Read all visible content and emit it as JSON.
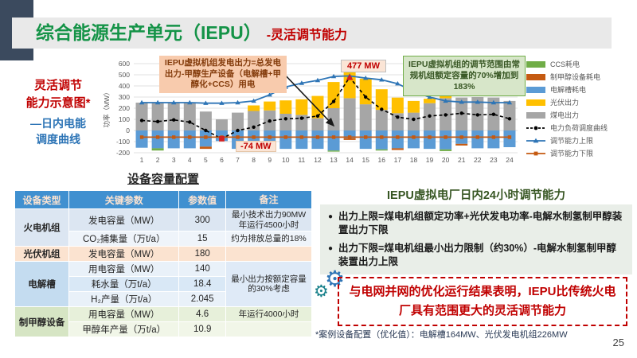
{
  "slide": {
    "title": "综合能源生产单元（IEPU）",
    "subtitle": "-灵活调节能力",
    "footnote": "*案例设备配置（优化值）：电解槽164MW、光伏发电机组226MW",
    "page_number": "25"
  },
  "left_caption": {
    "line1": "灵活调节",
    "line2": "能力示意图*",
    "line3": "—日内电能",
    "line4": "调度曲线"
  },
  "annotations": {
    "formula_note": "IEPU虚拟机组发电出力=总发电出力-甲醇生产设备（电解槽+甲醇化+CCS）用电",
    "peak_label": "477 MW",
    "min_label": "-74 MW",
    "range_note": "IEPU虚拟机组的调节范围由常规机组额定容量的70%增加到183%"
  },
  "chart_data": {
    "type": "bar+line combo, stacked bars",
    "ylabel": "功率（MW）",
    "ylim": [
      -200,
      600
    ],
    "yticks": [
      600,
      500,
      400,
      300,
      200,
      100,
      0,
      -100,
      -200
    ],
    "x": [
      1,
      2,
      3,
      4,
      5,
      6,
      7,
      8,
      9,
      10,
      11,
      12,
      13,
      14,
      15,
      16,
      17,
      18,
      19,
      20,
      21,
      22,
      23,
      24
    ],
    "series": [
      {
        "name": "煤电出力",
        "type": "bar",
        "stack": "pos",
        "color": "#a6a6a6",
        "values": [
          250,
          250,
          250,
          250,
          170,
          100,
          160,
          175,
          180,
          150,
          140,
          110,
          200,
          290,
          235,
          185,
          155,
          160,
          245,
          290,
          295,
          300,
          295,
          265
        ]
      },
      {
        "name": "光伏出力",
        "type": "bar",
        "stack": "pos",
        "color": "#ffc000",
        "values": [
          0,
          0,
          0,
          0,
          0,
          0,
          0,
          50,
          80,
          120,
          140,
          200,
          235,
          235,
          230,
          185,
          140,
          105,
          40,
          25,
          0,
          0,
          0,
          0
        ]
      },
      {
        "name": "电解槽耗电",
        "type": "bar",
        "stack": "neg",
        "color": "#5b9bd5",
        "values": [
          -155,
          -160,
          -160,
          -160,
          -145,
          -95,
          -165,
          -170,
          -165,
          -165,
          -165,
          -165,
          -180,
          -70,
          -165,
          -170,
          -160,
          -160,
          -165,
          -170,
          -120,
          -160,
          -160,
          -150
        ]
      },
      {
        "name": "制甲醇设备耗电",
        "type": "bar",
        "stack": "neg",
        "color": "#c55a11",
        "values": [
          0,
          0,
          0,
          0,
          -20,
          0,
          0,
          0,
          0,
          0,
          0,
          0,
          0,
          -15,
          0,
          0,
          -15,
          0,
          0,
          0,
          -15,
          0,
          0,
          0
        ]
      },
      {
        "name": "CCS耗电",
        "type": "bar",
        "stack": "neg",
        "color": "#70ad47",
        "values": [
          0,
          -20,
          0,
          0,
          0,
          0,
          0,
          0,
          0,
          0,
          0,
          0,
          -10,
          0,
          0,
          -10,
          0,
          0,
          0,
          -15,
          0,
          0,
          0,
          0
        ]
      },
      {
        "name": "电力负荷调度曲线",
        "type": "line",
        "style": "dashed",
        "color": "#000000",
        "marker": "dot",
        "values": [
          90,
          80,
          95,
          75,
          0,
          -74,
          0,
          30,
          85,
          105,
          110,
          130,
          260,
          477,
          300,
          190,
          120,
          100,
          130,
          140,
          155,
          140,
          145,
          105
        ]
      },
      {
        "name": "调节能力上限",
        "type": "line",
        "style": "solid",
        "color": "#2e75b6",
        "marker": "triangle",
        "values": [
          250,
          250,
          250,
          250,
          245,
          245,
          250,
          265,
          320,
          390,
          425,
          450,
          485,
          490,
          470,
          455,
          420,
          350,
          300,
          265,
          255,
          255,
          250,
          250
        ]
      },
      {
        "name": "调节能力下限",
        "type": "line",
        "style": "solid",
        "color": "#c55a11",
        "marker": "square",
        "values": [
          -60,
          -60,
          -60,
          -60,
          -60,
          -60,
          -60,
          -60,
          -60,
          -60,
          -60,
          -60,
          -60,
          -60,
          -60,
          -60,
          -60,
          -60,
          -60,
          -60,
          -60,
          -60,
          -60,
          -60
        ]
      }
    ],
    "highlights": [
      {
        "x": 14,
        "value": 477,
        "label": "477 MW",
        "marker": "red-triangle"
      },
      {
        "x": 6,
        "value": -74,
        "label": "-74 MW",
        "marker": "red-square"
      }
    ],
    "legend_position": "right",
    "legend": [
      {
        "label": "CCS耗电",
        "kind": "bar",
        "color": "#70ad47"
      },
      {
        "label": "制甲醇设备耗电",
        "kind": "bar",
        "color": "#c55a11"
      },
      {
        "label": "电解槽耗电",
        "kind": "bar",
        "color": "#5b9bd5"
      },
      {
        "label": "光伏出力",
        "kind": "bar",
        "color": "#ffc000"
      },
      {
        "label": "煤电出力",
        "kind": "bar",
        "color": "#a6a6a6"
      },
      {
        "label": "电力负荷调度曲线",
        "kind": "line",
        "style": "dashed",
        "color": "#000000",
        "marker": "dot"
      },
      {
        "label": "调节能力上限",
        "kind": "line",
        "style": "solid",
        "color": "#2e75b6",
        "marker": "triangle"
      },
      {
        "label": "调节能力下限",
        "kind": "line",
        "style": "solid",
        "color": "#c55a11",
        "marker": "square"
      }
    ]
  },
  "table": {
    "title": "设备容量配置",
    "headers": [
      "设备类型",
      "关键参数",
      "参数值",
      "备注"
    ],
    "rows": [
      {
        "device": "火电机组",
        "param": "发电容量（MW）",
        "value": "300",
        "note": "最小技术出力90MW年运行4500小时"
      },
      {
        "param": "CO₂捕集量（万t/a）",
        "value": "15",
        "note": "约为排放总量的18%"
      },
      {
        "device": "光伏机组",
        "param": "发电容量（MW）",
        "value": "180",
        "note": ""
      },
      {
        "device": "电解槽",
        "param": "用电容量（MW）",
        "value": "140",
        "note": "最小出力按额定容量的30%考虑"
      },
      {
        "param": "耗水量（万t/a）",
        "value": "18.4"
      },
      {
        "param": "H₂产量（万t/a）",
        "value": "2.045"
      },
      {
        "device": "制甲醇设备",
        "param": "用电容量（MW）",
        "value": "4.6",
        "note": "年运行4000小时"
      },
      {
        "param": "甲醇年产量（万t/a）",
        "value": "10.9",
        "note": ""
      }
    ]
  },
  "right_panel": {
    "title": "IEPU虚拟电厂日内24小时调节能力",
    "bullets": [
      "出力上限=煤电机组额定功率+光伏发电功率-电解水制氢制甲醇装置出力下限",
      "出力下限=煤电机组最小出力限制（约30%）-电解水制氢制甲醇装置出力上限"
    ],
    "conclusion": "与电网并网的优化运行结果表明，IEPU比传统火电厂具有范围更大的灵活调节能力"
  },
  "colors": {
    "title_green": "#149347",
    "accent_red": "#c00000",
    "accent_blue": "#2e75b6",
    "header_blue": "#4090d0",
    "sidebar_dark": "#3b4a5e"
  }
}
